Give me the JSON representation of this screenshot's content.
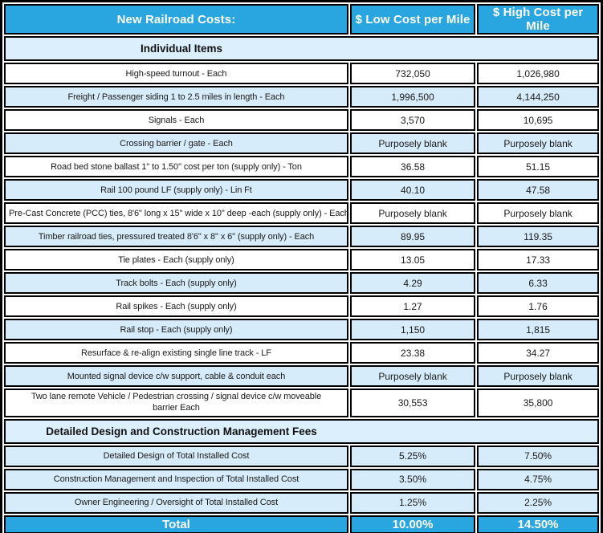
{
  "colors": {
    "header_blue": "#29A5DF",
    "light_blue_row": "#D7ECFB",
    "section_header_blue": "#DCEFFC",
    "border": "#000000",
    "header_text": "#ffffff",
    "body_text": "#1a1a1a"
  },
  "table": {
    "header": {
      "item_col": "New Railroad Costs:",
      "low_col": "$ Low Cost per Mile",
      "high_col": "$ High Cost per Mile"
    },
    "sections": [
      {
        "title": "Individual Items",
        "rows": [
          {
            "label": "High-speed turnout - Each",
            "low": "732,050",
            "high": "1,026,980",
            "shade": "white"
          },
          {
            "label": "Freight / Passenger siding 1 to 2.5 miles in length - Each",
            "low": "1,996,500",
            "high": "4,144,250",
            "shade": "blue"
          },
          {
            "label": "Signals - Each",
            "low": "3,570",
            "high": "10,695",
            "shade": "white"
          },
          {
            "label": "Crossing barrier / gate - Each",
            "low": "Purposely blank",
            "high": "Purposely blank",
            "shade": "blue"
          },
          {
            "label": "Road bed stone ballast 1\" to 1.50\" cost per ton (supply only) - Ton",
            "low": "36.58",
            "high": "51.15",
            "shade": "white"
          },
          {
            "label": "Rail 100 pound LF (supply only) - Lin Ft",
            "low": "40.10",
            "high": "47.58",
            "shade": "blue"
          },
          {
            "label": "Pre-Cast Concrete (PCC) ties, 8'6\" long x 15\" wide x 10\" deep -each (supply only) - Each",
            "low": "Purposely blank",
            "high": "Purposely blank",
            "shade": "white"
          },
          {
            "label": "Timber railroad ties, pressured treated 8'6\" x 8\" x 6\"  (supply only) - Each",
            "low": "89.95",
            "high": "119.35",
            "shade": "blue"
          },
          {
            "label": "Tie plates - Each (supply only)",
            "low": "13.05",
            "high": "17.33",
            "shade": "white"
          },
          {
            "label": "Track bolts - Each (supply only)",
            "low": "4.29",
            "high": "6.33",
            "shade": "blue"
          },
          {
            "label": "Rail spikes - Each (supply only)",
            "low": "1.27",
            "high": "1.76",
            "shade": "white"
          },
          {
            "label": "Rail stop - Each (supply only)",
            "low": "1,150",
            "high": "1,815",
            "shade": "blue"
          },
          {
            "label": "Resurface & re-align existing single line track - LF",
            "low": "23.38",
            "high": "34.27",
            "shade": "white"
          },
          {
            "label": "Mounted signal device c/w support, cable & conduit each",
            "low": "Purposely blank",
            "high": "Purposely blank",
            "shade": "blue"
          },
          {
            "label": "Two lane remote Vehicle / Pedestrian crossing / signal device c/w moveable barrier Each",
            "low": "30,553",
            "high": "35,800",
            "shade": "white",
            "wrap": true
          }
        ]
      },
      {
        "title": "Detailed Design and Construction Management Fees",
        "rows": [
          {
            "label": "Detailed Design of Total Installed Cost",
            "low": "5.25%",
            "high": "7.50%",
            "shade": "blue"
          },
          {
            "label": "Construction Management and Inspection of Total Installed Cost",
            "low": "3.50%",
            "high": "4.75%",
            "shade": "blue"
          },
          {
            "label": "Owner Engineering / Oversight of Total Installed Cost",
            "low": "1.25%",
            "high": "2.25%",
            "shade": "blue"
          }
        ]
      }
    ],
    "total_row": {
      "label": "Total",
      "low": "10.00%",
      "high": "14.50%"
    }
  }
}
